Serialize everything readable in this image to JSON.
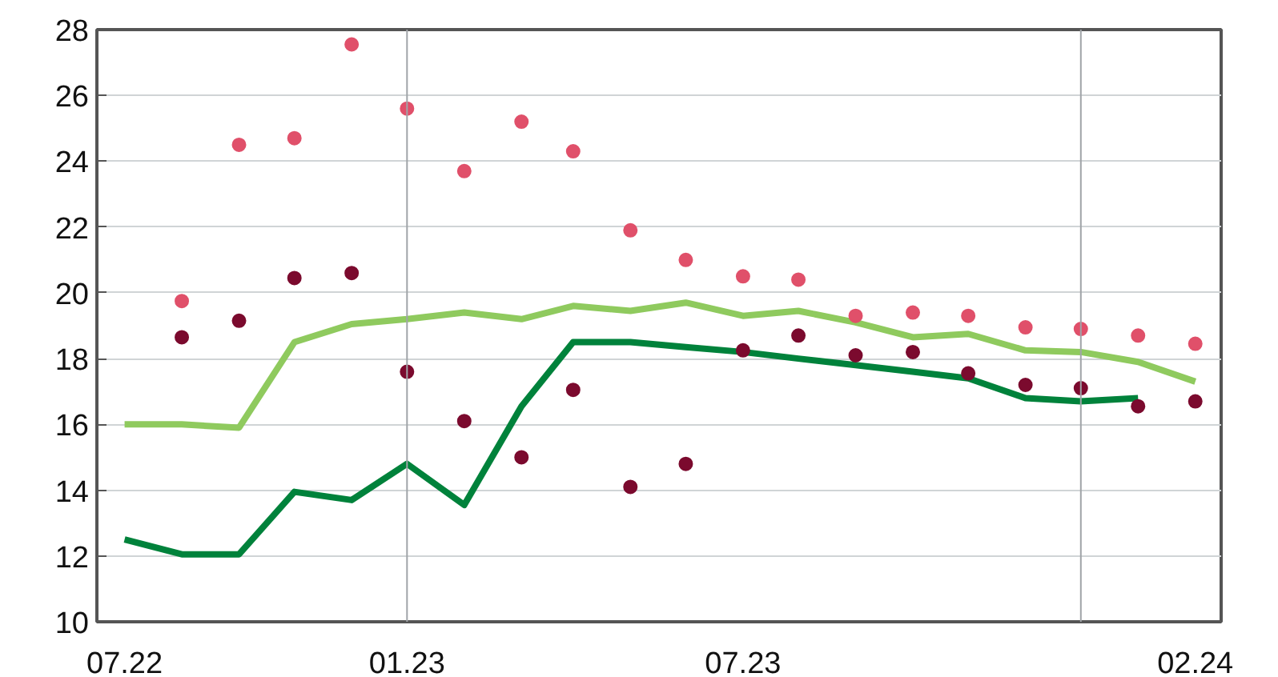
{
  "chart_data": {
    "type": "line",
    "x": [
      "2022-07",
      "2022-08",
      "2022-09",
      "2022-10",
      "2022-11",
      "2022-12",
      "2023-01",
      "2023-02",
      "2023-03",
      "2023-04",
      "2023-05",
      "2023-06",
      "2023-07",
      "2023-08",
      "2023-09",
      "2023-10",
      "2023-11",
      "2023-12",
      "2024-01",
      "2024-02"
    ],
    "series": [
      {
        "color": "#8fca5e",
        "values": [
          16.0,
          16.0,
          15.9,
          18.5,
          19.05,
          19.2,
          19.4,
          19.2,
          19.6,
          19.45,
          19.7,
          19.3,
          19.45,
          19.1,
          18.65,
          18.75,
          18.25,
          18.2,
          17.9,
          17.3
        ]
      },
      {
        "color": "#00823b",
        "values": [
          12.5,
          12.05,
          12.05,
          13.95,
          13.7,
          14.8,
          13.55,
          16.55,
          18.5,
          18.5,
          18.35,
          18.2,
          18.0,
          17.8,
          17.6,
          17.4,
          16.8,
          16.7,
          16.8,
          null
        ]
      },
      {
        "type": "scatter",
        "marker": "circle",
        "color": "#e0506a",
        "values": [
          null,
          19.75,
          24.5,
          24.7,
          27.55,
          25.6,
          23.7,
          25.2,
          24.3,
          21.9,
          21.0,
          20.5,
          20.4,
          19.3,
          19.4,
          19.3,
          18.95,
          18.9,
          18.7,
          18.45
        ]
      },
      {
        "type": "scatter",
        "marker": "circle",
        "color": "#7b0a2e",
        "values": [
          null,
          18.65,
          19.15,
          20.45,
          20.6,
          17.6,
          16.1,
          15.0,
          17.05,
          14.1,
          14.8,
          18.25,
          18.7,
          18.1,
          18.2,
          17.55,
          17.2,
          17.1,
          16.55,
          16.7
        ]
      }
    ],
    "xlim": [
      "2022-06-16",
      "2024-02-15"
    ],
    "xticks": [
      {
        "value": "2022-07",
        "label": "07.22"
      },
      {
        "value": "2022-12",
        "label": "01.23"
      },
      {
        "value": "2023-06",
        "label": "07.23"
      },
      {
        "value": "2024-02",
        "label": "02.24"
      }
    ],
    "ylim": [
      10,
      28
    ],
    "yticks": [
      10,
      12,
      14,
      16,
      18,
      20,
      22,
      24,
      26,
      28
    ],
    "ref_lines": [
      {
        "axis": "x",
        "value": "2022-12",
        "color": "#a0a4a8"
      },
      {
        "axis": "x",
        "value": "2023-12",
        "color": "#a0a4a8"
      }
    ],
    "grid": "y"
  }
}
